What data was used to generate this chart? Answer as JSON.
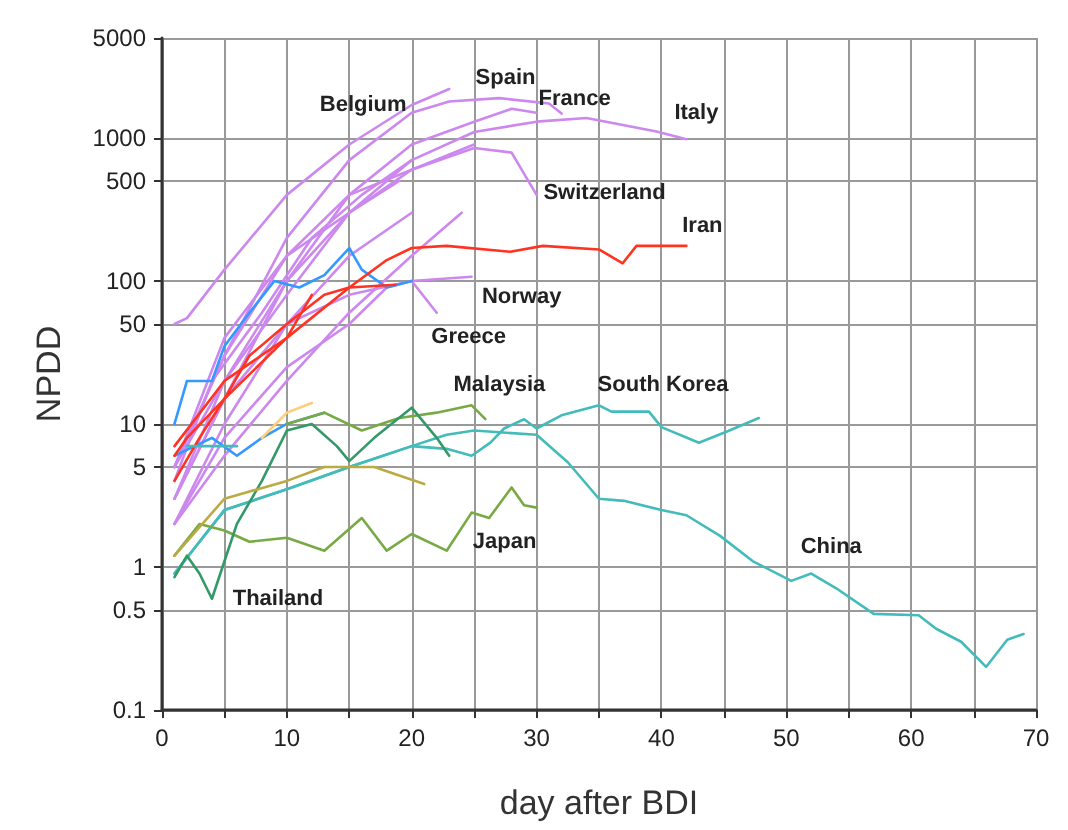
{
  "chart_data": {
    "type": "line",
    "xlabel": "day after BDI",
    "ylabel": "NPDD",
    "log": "y",
    "grid": true,
    "marker": "none",
    "line_style": "solid",
    "xlim": [
      0,
      70
    ],
    "xticks": [
      0,
      {
        "value": 5,
        "label": null
      },
      10,
      {
        "value": 15,
        "label": null
      },
      20,
      {
        "value": 25,
        "label": null
      },
      30,
      {
        "value": 35,
        "label": null
      },
      40,
      {
        "value": 45,
        "label": null
      },
      50,
      {
        "value": 55,
        "label": null
      },
      60,
      {
        "value": 65,
        "label": null
      },
      70
    ],
    "ylim": [
      0.1,
      5000
    ],
    "yticks": [
      0.1,
      0.5,
      1,
      5,
      10,
      50,
      100,
      500,
      1000,
      5000
    ],
    "series": [
      {
        "name": "Belgium",
        "color": "#cc88ee",
        "x": [
          1,
          2,
          5,
          10,
          15,
          20,
          23
        ],
        "values": [
          50,
          55,
          120,
          400,
          900,
          1700,
          2200
        ]
      },
      {
        "name": "Spain",
        "color": "#cc88ee",
        "x": [
          1,
          5,
          10,
          15,
          20,
          23,
          27,
          31,
          32
        ],
        "values": [
          5,
          30,
          200,
          700,
          1500,
          1800,
          1900,
          1740,
          1480
        ]
      },
      {
        "name": "France",
        "color": "#cc88ee",
        "x": [
          1,
          5,
          10,
          15,
          20,
          25,
          28,
          30
        ],
        "values": [
          3,
          15,
          100,
          400,
          900,
          1300,
          1600,
          1500
        ]
      },
      {
        "name": "Italy",
        "color": "#cc88ee",
        "x": [
          1,
          5,
          10,
          15,
          20,
          25,
          30,
          34,
          39.6,
          42
        ],
        "values": [
          5,
          20,
          100,
          300,
          700,
          1100,
          1300,
          1380,
          1110,
          980
        ]
      },
      {
        "name": "Switzerland",
        "color": "#cc88ee",
        "x": [
          1,
          5,
          10,
          15,
          20,
          25,
          28,
          30
        ],
        "values": [
          5,
          30,
          150,
          400,
          600,
          850,
          790,
          400
        ]
      },
      {
        "name": "Norway",
        "color": "#cc88ee",
        "x": [
          1,
          5,
          10,
          15,
          20,
          24.8
        ],
        "values": [
          3,
          15,
          50,
          80,
          100,
          107
        ]
      },
      {
        "name": "Greece",
        "color": "#cc88ee",
        "x": [
          1,
          5,
          10,
          15,
          18,
          20,
          22
        ],
        "values": [
          2,
          8,
          25,
          50,
          90,
          100,
          60
        ]
      },
      {
        "color": "#cc88ee",
        "x": [
          1,
          5,
          10,
          15,
          20,
          25
        ],
        "values": [
          3,
          20,
          80,
          300,
          600,
          900
        ]
      },
      {
        "color": "#cc88ee",
        "x": [
          1,
          5,
          10,
          15,
          20
        ],
        "values": [
          2,
          10,
          50,
          150,
          300
        ]
      },
      {
        "color": "#cc88ee",
        "x": [
          1,
          4,
          8,
          12,
          16,
          20
        ],
        "values": [
          4,
          20,
          60,
          200,
          400,
          700
        ]
      },
      {
        "color": "#cc88ee",
        "x": [
          1,
          5,
          10,
          15,
          19
        ],
        "values": [
          5,
          40,
          150,
          300,
          500
        ]
      },
      {
        "color": "#cc88ee",
        "x": [
          1,
          5,
          10,
          15,
          20,
          24
        ],
        "values": [
          2,
          6,
          20,
          60,
          150,
          300
        ]
      },
      {
        "color": "#3399ff",
        "x": [
          1,
          2,
          4,
          5,
          7,
          9,
          11,
          13,
          15,
          16,
          18,
          20
        ],
        "values": [
          10,
          20,
          20,
          35,
          60,
          100,
          90,
          110,
          170,
          120,
          90,
          100
        ]
      },
      {
        "color": "#3399ff",
        "x": [
          1,
          4,
          6,
          8,
          10,
          13
        ],
        "values": [
          6,
          8,
          6,
          8,
          10,
          12
        ]
      },
      {
        "name": "Iran",
        "color": "#ff3322",
        "x": [
          1,
          2,
          5,
          10,
          15,
          18,
          20,
          22.8,
          27.9,
          30.5,
          35,
          36.9,
          38,
          42
        ],
        "values": [
          6,
          8,
          15,
          40,
          90,
          140,
          170,
          176,
          160,
          176,
          166,
          133,
          176,
          176
        ]
      },
      {
        "color": "#ff3322",
        "x": [
          1,
          3,
          5,
          7,
          10,
          13,
          15,
          18.7
        ],
        "values": [
          4,
          8,
          15,
          30,
          50,
          80,
          90,
          94
        ]
      },
      {
        "color": "#ff3322",
        "x": [
          1,
          5,
          10,
          12
        ],
        "values": [
          7,
          20,
          40,
          80
        ]
      },
      {
        "name": "China",
        "color": "#44bbbb",
        "x": [
          1,
          5,
          10,
          15,
          20,
          22.8,
          25,
          30,
          32.5,
          35,
          37,
          40,
          42,
          44.7,
          47.3,
          50.4,
          52,
          54,
          57,
          60.6,
          62,
          64,
          66,
          67.7,
          69
        ],
        "values": [
          0.9,
          2.5,
          3.5,
          5,
          7,
          8.4,
          9,
          8.4,
          5.4,
          3,
          2.9,
          2.5,
          2.3,
          1.65,
          1.1,
          0.8,
          0.9,
          0.71,
          0.47,
          0.46,
          0.37,
          0.3,
          0.2,
          0.31,
          0.34
        ]
      },
      {
        "name": "South Korea",
        "color": "#44bbbb",
        "x": [
          1,
          5,
          10,
          15,
          20,
          22.8,
          24.8,
          26.3,
          27.4,
          29,
          30,
          32,
          35,
          36,
          39,
          40,
          43,
          45.3,
          47.8
        ],
        "values": [
          0.9,
          2.5,
          3.5,
          5,
          7,
          6.7,
          6,
          7.4,
          9.3,
          10.8,
          9.3,
          11.5,
          13.5,
          12.2,
          12.2,
          9.5,
          7.4,
          8.9,
          11
        ]
      },
      {
        "color": "#44bbbb",
        "x": [
          2,
          6
        ],
        "values": [
          7,
          7
        ]
      },
      {
        "name": "Japan",
        "color": "#77aa44",
        "x": [
          1,
          3,
          5,
          7,
          10,
          13,
          16,
          18,
          20,
          22.8,
          24.8,
          26.2,
          28,
          29,
          30
        ],
        "values": [
          1.2,
          2,
          1.8,
          1.5,
          1.6,
          1.3,
          2.2,
          1.3,
          1.7,
          1.3,
          2.4,
          2.2,
          3.6,
          2.7,
          2.6
        ]
      },
      {
        "name": "Malaysia",
        "color": "#77aa44",
        "x": [
          10,
          13,
          16,
          19,
          22,
          24.8,
          25.9
        ],
        "values": [
          10,
          12,
          9,
          11,
          12,
          13.5,
          10.8
        ]
      },
      {
        "name": "Thailand",
        "color": "#339966",
        "x": [
          1,
          2,
          3,
          4,
          6,
          8,
          10,
          12,
          14,
          15,
          17,
          20,
          22,
          23
        ],
        "values": [
          0.85,
          1.2,
          0.9,
          0.6,
          2,
          4,
          9,
          10,
          7,
          5.5,
          8,
          13,
          8,
          6
        ]
      },
      {
        "color": "#bbaa44",
        "x": [
          1,
          5,
          10,
          13,
          17,
          21
        ],
        "values": [
          1.2,
          3,
          4,
          5,
          5,
          3.8
        ]
      },
      {
        "color": "#ffcc77",
        "x": [
          8,
          10,
          12
        ],
        "values": [
          8,
          12,
          14
        ]
      }
    ]
  }
}
